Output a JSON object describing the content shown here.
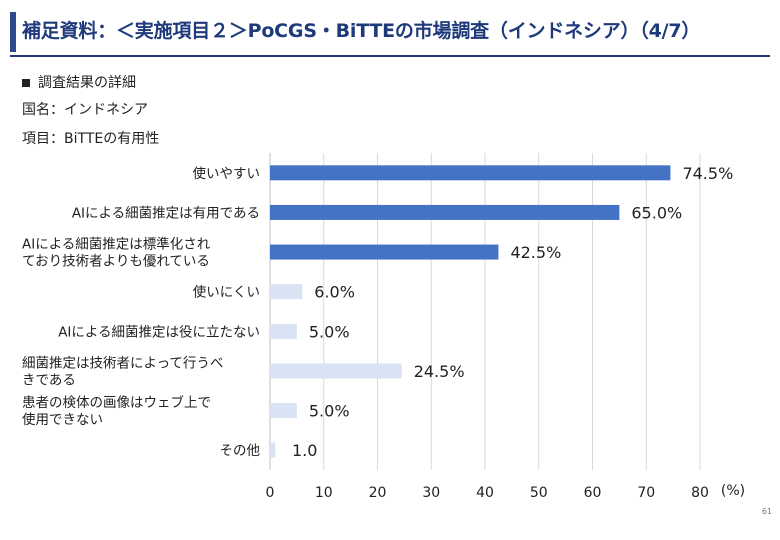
{
  "header": {
    "title": "補足資料：＜実施項目２＞PoCGS・BiTTEの市場調査（インドネシア）（4/7）"
  },
  "section": {
    "label": "調査結果の詳細"
  },
  "meta": {
    "country": "国名：インドネシア",
    "item": "項目：BiTTEの有用性"
  },
  "page_number": "61",
  "colors": {
    "accent": "#4472c4",
    "light": "#dae3f3",
    "title": "#1f3a7a"
  },
  "chart_data": {
    "type": "bar",
    "orientation": "horizontal",
    "categories": [
      [
        "使いやすい"
      ],
      [
        "AIによる細菌推定は有用である"
      ],
      [
        "AIによる細菌推定は標準化され",
        "ており技術者よりも優れている"
      ],
      [
        "使いにくい"
      ],
      [
        "AIによる細菌推定は役に立たない"
      ],
      [
        "細菌推定は技術者によって行うべ",
        "きである"
      ],
      [
        "患者の検体の画像はウェブ上で",
        "使用できない"
      ],
      [
        "その他"
      ]
    ],
    "values": [
      74.5,
      65.0,
      42.5,
      6.0,
      5.0,
      24.5,
      5.0,
      1.0
    ],
    "value_labels": [
      "74.5%",
      "65.0%",
      "42.5%",
      "6.0%",
      "5.0%",
      "24.5%",
      "5.0%",
      "1.0"
    ],
    "highlight": [
      true,
      true,
      true,
      false,
      false,
      false,
      false,
      false
    ],
    "xlim": [
      0,
      80
    ],
    "xticks": [
      0,
      10,
      20,
      30,
      40,
      50,
      60,
      70,
      80
    ],
    "xunit": "(%)",
    "grid": true
  }
}
